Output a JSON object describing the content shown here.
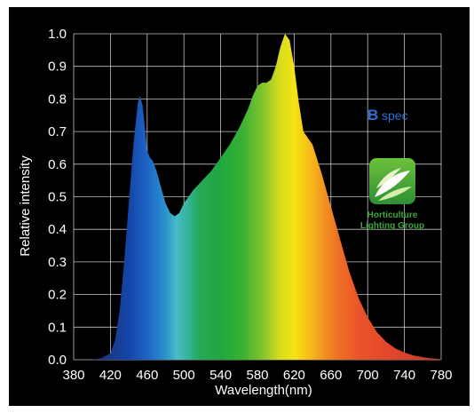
{
  "chart_data": {
    "type": "area",
    "title": "",
    "xlabel": "Wavelength(nm)",
    "ylabel": "Relative intensity",
    "xlim": [
      380,
      780
    ],
    "ylim": [
      0.0,
      1.0
    ],
    "x_ticks": [
      380,
      420,
      460,
      500,
      540,
      580,
      620,
      660,
      700,
      740,
      780
    ],
    "y_ticks": [
      "0.0",
      "0.1",
      "0.2",
      "0.3",
      "0.4",
      "0.5",
      "0.6",
      "0.7",
      "0.8",
      "0.9",
      "1.0"
    ],
    "grid": true,
    "fill": "visible-spectrum gradient",
    "series": [
      {
        "x": [
          380,
          400,
          410,
          420,
          425,
          430,
          435,
          440,
          445,
          450,
          452,
          455,
          458,
          460,
          463,
          466,
          470,
          475,
          480,
          485,
          490,
          495,
          500,
          505,
          510,
          520,
          530,
          540,
          550,
          560,
          570,
          575,
          580,
          585,
          590,
          595,
          600,
          605,
          610,
          615,
          620,
          625,
          630,
          640,
          650,
          660,
          670,
          680,
          690,
          700,
          710,
          720,
          730,
          740,
          750,
          760,
          770,
          780
        ],
        "y": [
          0.0,
          0.0,
          0.005,
          0.02,
          0.06,
          0.15,
          0.3,
          0.48,
          0.66,
          0.79,
          0.81,
          0.78,
          0.7,
          0.64,
          0.62,
          0.61,
          0.58,
          0.53,
          0.48,
          0.45,
          0.44,
          0.45,
          0.48,
          0.5,
          0.52,
          0.55,
          0.58,
          0.62,
          0.66,
          0.71,
          0.77,
          0.81,
          0.84,
          0.85,
          0.85,
          0.86,
          0.9,
          0.96,
          1.0,
          0.98,
          0.9,
          0.79,
          0.7,
          0.66,
          0.57,
          0.47,
          0.37,
          0.27,
          0.19,
          0.13,
          0.085,
          0.055,
          0.035,
          0.022,
          0.013,
          0.008,
          0.004,
          0.002
        ]
      }
    ]
  },
  "brand": {
    "bspec_mark": "B",
    "bspec_text": "spec",
    "logo_line1": "Horticulture",
    "logo_line2": "Lighting Group",
    "bspec_color": "#2f6fd6",
    "logo_green": "#3da63a"
  }
}
